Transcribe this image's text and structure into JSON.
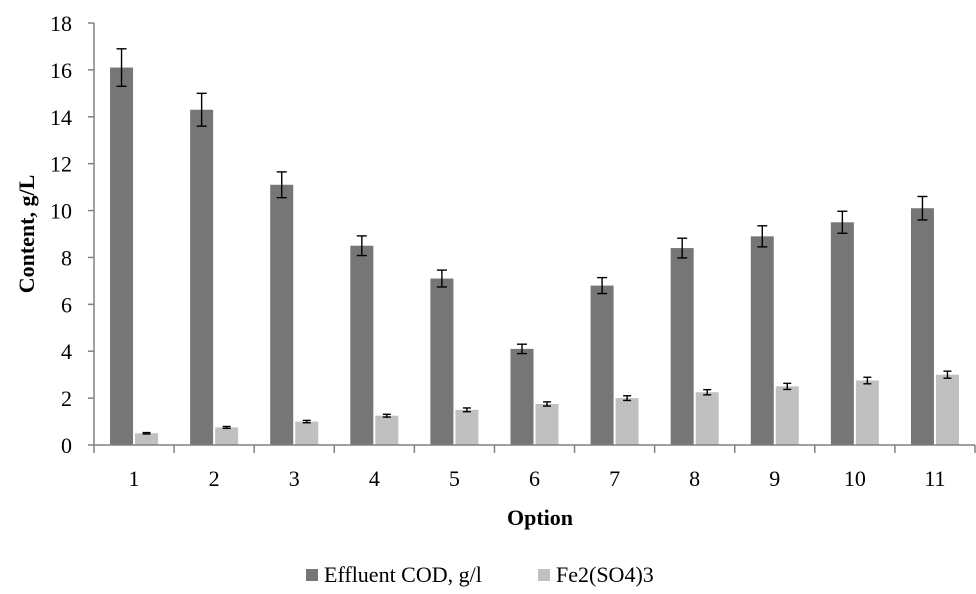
{
  "colors": {
    "series_cod": "#767676",
    "series_fe": "#c0c0c0",
    "axis": "#808080",
    "error_bar": "#000000"
  },
  "chart_data": {
    "type": "bar",
    "title": "",
    "xlabel": "Option",
    "ylabel": "Content, g/L",
    "categories": [
      "1",
      "2",
      "3",
      "4",
      "5",
      "6",
      "7",
      "8",
      "9",
      "10",
      "11"
    ],
    "ylim": [
      0,
      18
    ],
    "yticks": [
      "0",
      "2",
      "4",
      "6",
      "8",
      "10",
      "12",
      "14",
      "16",
      "18"
    ],
    "grid": false,
    "legend_position": "bottom",
    "series": [
      {
        "name": "Effluent COD, g/l",
        "color": "#767676",
        "values": [
          16.1,
          14.3,
          11.1,
          8.5,
          7.1,
          4.1,
          6.8,
          8.4,
          8.9,
          9.5,
          10.1
        ],
        "errors": [
          0.8,
          0.7,
          0.55,
          0.42,
          0.36,
          0.2,
          0.34,
          0.42,
          0.45,
          0.47,
          0.5
        ]
      },
      {
        "name": "Fe2(SO4)3",
        "color": "#c0c0c0",
        "values": [
          0.5,
          0.75,
          1.0,
          1.25,
          1.5,
          1.75,
          2.0,
          2.25,
          2.5,
          2.75,
          3.0
        ],
        "errors": [
          0.03,
          0.04,
          0.05,
          0.06,
          0.08,
          0.09,
          0.1,
          0.11,
          0.13,
          0.14,
          0.15
        ]
      }
    ]
  }
}
